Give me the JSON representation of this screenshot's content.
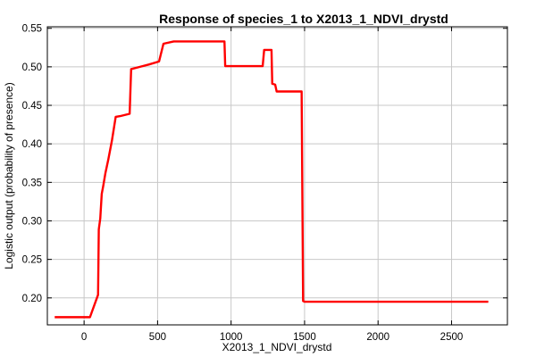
{
  "chart_data": {
    "type": "line",
    "title": "Response of species_1 to X2013_1_NDVI_drystd",
    "xlabel": "X2013_1_NDVI_drystd",
    "ylabel": "Logistic output (probability of presence)",
    "xlim": [
      -250,
      2880
    ],
    "ylim": [
      0.165,
      0.552
    ],
    "x_ticks": [
      0,
      500,
      1000,
      1500,
      2000,
      2500
    ],
    "y_ticks": [
      0.2,
      0.25,
      0.3,
      0.35,
      0.4,
      0.45,
      0.5,
      0.55
    ],
    "x_tick_labels": [
      "0",
      "500",
      "1000",
      "1500",
      "2000",
      "2500"
    ],
    "y_tick_labels": [
      "0.20",
      "0.25",
      "0.30",
      "0.35",
      "0.40",
      "0.45",
      "0.50",
      "0.55"
    ],
    "grid": true,
    "series": [
      {
        "color": "#ff0000",
        "x": [
          -200,
          40,
          95,
          100,
          110,
          120,
          130,
          145,
          165,
          190,
          215,
          245,
          310,
          320,
          380,
          440,
          510,
          540,
          610,
          700,
          800,
          880,
          955,
          960,
          1000,
          1050,
          1150,
          1215,
          1225,
          1260,
          1275,
          1280,
          1300,
          1310,
          1350,
          1400,
          1440,
          1480,
          1490,
          1500,
          1700,
          1900,
          2100,
          2300,
          2500,
          2750
        ],
        "y": [
          0.175,
          0.175,
          0.204,
          0.289,
          0.303,
          0.335,
          0.345,
          0.362,
          0.38,
          0.405,
          0.435,
          0.436,
          0.439,
          0.497,
          0.5,
          0.503,
          0.507,
          0.53,
          0.533,
          0.533,
          0.533,
          0.533,
          0.533,
          0.501,
          0.501,
          0.501,
          0.501,
          0.501,
          0.522,
          0.522,
          0.522,
          0.478,
          0.477,
          0.468,
          0.468,
          0.468,
          0.468,
          0.468,
          0.196,
          0.195,
          0.195,
          0.195,
          0.195,
          0.195,
          0.195,
          0.195
        ]
      }
    ]
  }
}
